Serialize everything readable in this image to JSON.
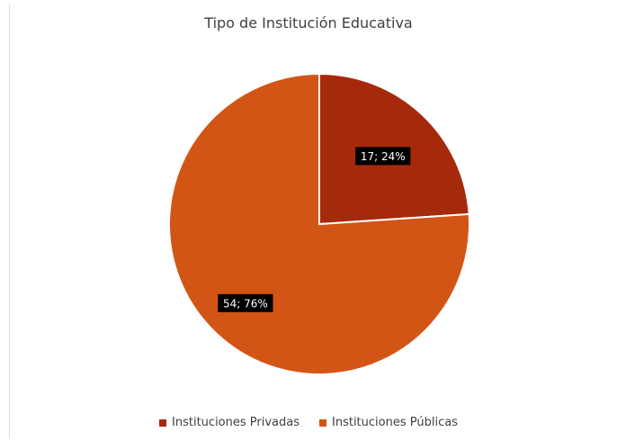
{
  "chart_data": {
    "type": "pie",
    "title": "Tipo de Institución Educativa",
    "categories": [
      "Instituciones Privadas",
      "Instituciones Públicas"
    ],
    "values": [
      17,
      54
    ],
    "percentages": [
      24,
      76
    ],
    "data_labels": [
      "17; 24%",
      "54; 76%"
    ],
    "colors": [
      "#a52a0c",
      "#d35515"
    ],
    "legend_position": "bottom"
  }
}
